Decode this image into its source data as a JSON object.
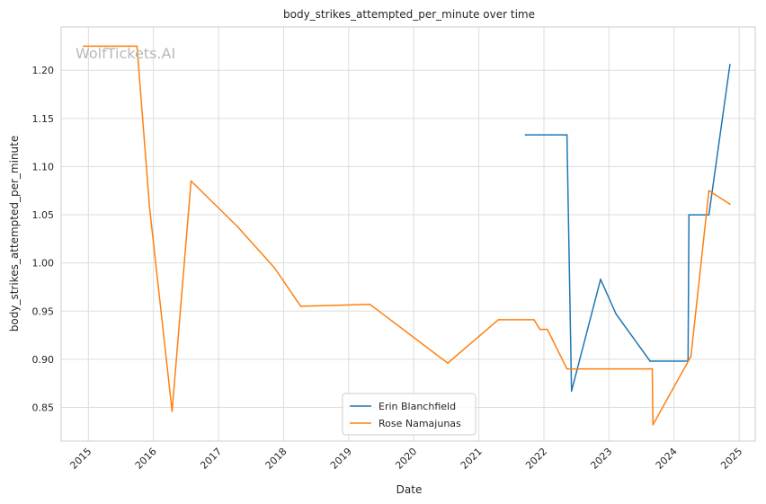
{
  "chart_data": {
    "type": "line",
    "title": "body_strikes_attempted_per_minute over time",
    "xlabel": "Date",
    "ylabel": "body_strikes_attempted_per_minute",
    "watermark": "WolfTickets.AI",
    "xlim": [
      "2014-08-01",
      "2025-04-01"
    ],
    "ylim": [
      0.815,
      1.245
    ],
    "x_ticks": [
      "2015",
      "2016",
      "2017",
      "2018",
      "2019",
      "2020",
      "2021",
      "2022",
      "2023",
      "2024",
      "2025"
    ],
    "y_ticks": [
      0.85,
      0.9,
      0.95,
      1.0,
      1.05,
      1.1,
      1.15,
      1.2
    ],
    "grid": true,
    "legend_position": "bottom-center",
    "series": [
      {
        "name": "Erin Blanchfield",
        "color": "#1f77b4",
        "points": [
          {
            "x": "2021-09-20",
            "y": 1.133
          },
          {
            "x": "2022-05-10",
            "y": 1.133
          },
          {
            "x": "2022-06-05",
            "y": 0.867
          },
          {
            "x": "2022-11-15",
            "y": 0.983
          },
          {
            "x": "2023-02-10",
            "y": 0.947
          },
          {
            "x": "2023-08-20",
            "y": 0.898
          },
          {
            "x": "2024-03-20",
            "y": 0.898
          },
          {
            "x": "2024-03-25",
            "y": 1.05
          },
          {
            "x": "2024-07-15",
            "y": 1.05
          },
          {
            "x": "2024-11-10",
            "y": 1.206
          }
        ]
      },
      {
        "name": "Rose Namajunas",
        "color": "#ff7f0e",
        "points": [
          {
            "x": "2014-12-05",
            "y": 1.225
          },
          {
            "x": "2015-10-01",
            "y": 1.225
          },
          {
            "x": "2015-12-10",
            "y": 1.058
          },
          {
            "x": "2016-04-15",
            "y": 0.846
          },
          {
            "x": "2016-07-30",
            "y": 1.085
          },
          {
            "x": "2017-04-15",
            "y": 1.038
          },
          {
            "x": "2017-11-10",
            "y": 0.995
          },
          {
            "x": "2018-04-07",
            "y": 0.955
          },
          {
            "x": "2019-05-01",
            "y": 0.957
          },
          {
            "x": "2020-07-10",
            "y": 0.896
          },
          {
            "x": "2021-04-20",
            "y": 0.941
          },
          {
            "x": "2021-11-06",
            "y": 0.941
          },
          {
            "x": "2021-12-10",
            "y": 0.931
          },
          {
            "x": "2022-01-20",
            "y": 0.931
          },
          {
            "x": "2022-05-10",
            "y": 0.89
          },
          {
            "x": "2023-09-01",
            "y": 0.89
          },
          {
            "x": "2023-09-05",
            "y": 0.832
          },
          {
            "x": "2024-04-05",
            "y": 0.903
          },
          {
            "x": "2024-07-15",
            "y": 1.075
          },
          {
            "x": "2024-11-10",
            "y": 1.061
          }
        ]
      }
    ]
  }
}
